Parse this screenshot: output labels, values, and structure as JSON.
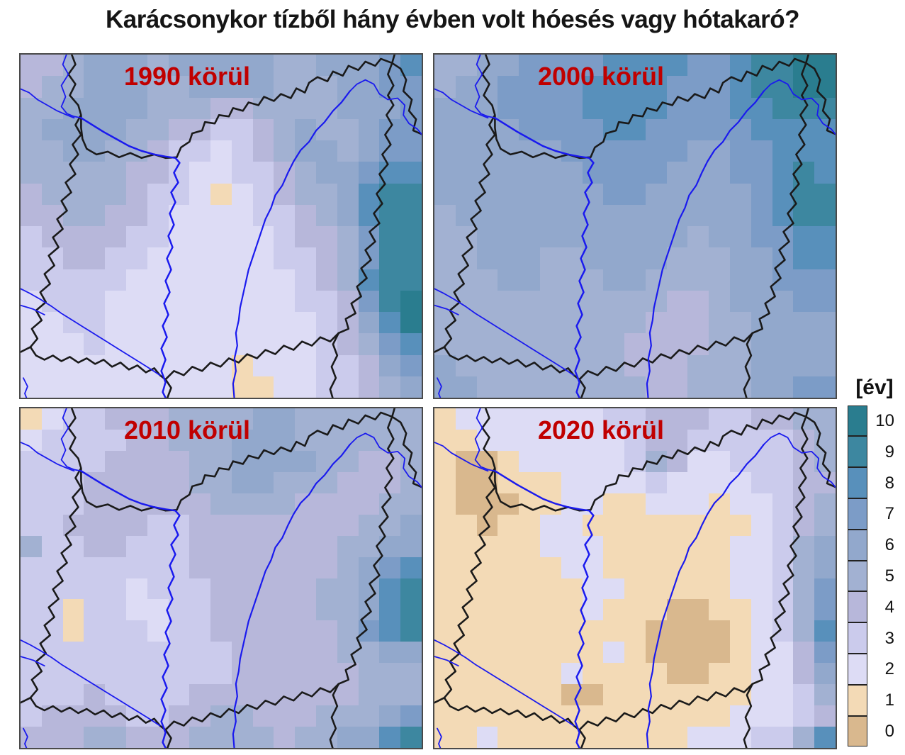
{
  "title": "Karácsonykor tízből hány évben volt hóesés vagy hótakaró?",
  "colors": {
    "label_red": "#c00000",
    "river_blue": "#1a1aee",
    "border_black": "#1a1a1a",
    "frame_gray": "#4a4a4a"
  },
  "legend": {
    "title": "[év]",
    "values": [
      "10",
      "9",
      "8",
      "7",
      "6",
      "5",
      "4",
      "3",
      "2",
      "1",
      "0"
    ]
  },
  "palette": {
    "0": "#d9b88e",
    "1": "#f3dab6",
    "2": "#dddcf5",
    "3": "#cbcbec",
    "4": "#b7b7da",
    "5": "#a2b1d2",
    "6": "#92a8cc",
    "7": "#7c9cc7",
    "8": "#5890bb",
    "9": "#3d87a0",
    "10": "#2a7d8f"
  },
  "panels": [
    {
      "label": "1990 körül",
      "grid": [
        "4456665666665566678",
        "4556665566665556677",
        "5566665554455556667",
        "5666655443345655677",
        "5566554332345665677",
        "5555544322334566788",
        "4555543321234556899",
        "4455443222233456899",
        "3444433222223445799",
        "3344332222223345799",
        "3333322222222345899",
        "233322222222233479a",
        "223322222222223468a",
        "2223222222222234578",
        "2222222222122233467",
        "2222222222112233456"
      ]
    },
    {
      "label": "2000 körül",
      "grid": [
        "55667777888877899aa",
        "56677778888777899aa",
        "6667777888877788999",
        "6666777788777778888",
        "6666667777776677888",
        "6666666777766677898",
        "6666666677666667899",
        "5666666666666667899",
        "5566666666665667788",
        "5566655666655566788",
        "5556655566555566777",
        "5555555555544566677",
        "5555555555444556666",
        "5555555554444556666",
        "6555555554445556666",
        "6655555555445556677"
      ]
    },
    {
      "label": "2010 körül",
      "grid": [
        "1233444555566555555",
        "2333344555666555555",
        "3333444455666655445",
        "3334444455665554445",
        "3334444445555444455",
        "3344443344444444556",
        "5334433344444445566",
        "3333333344444445678",
        "3333323334444455689",
        "3313322334444455689",
        "3313332334444445789",
        "3333333333444445566",
        "3333333333444444555",
        "3334333344444444555",
        "3444433445544455567",
        "4445544455554556689"
      ]
    },
    {
      "label": "2020 körül",
      "grid": [
        "1222222233444334455",
        "1122222223443333345",
        "1001222223542233345",
        "1001112222322223344",
        "1000112211222122345",
        "1101122111111112345",
        "1111122211111122356",
        "1111112211111122356",
        "1111111221111122357",
        "1111111211100112357",
        "1111111111000012358",
        "1111111121000012247",
        "1111112111100112246",
        "1111110011111112235",
        "1111111111111122234",
        "1121111111112223358"
      ]
    }
  ]
}
